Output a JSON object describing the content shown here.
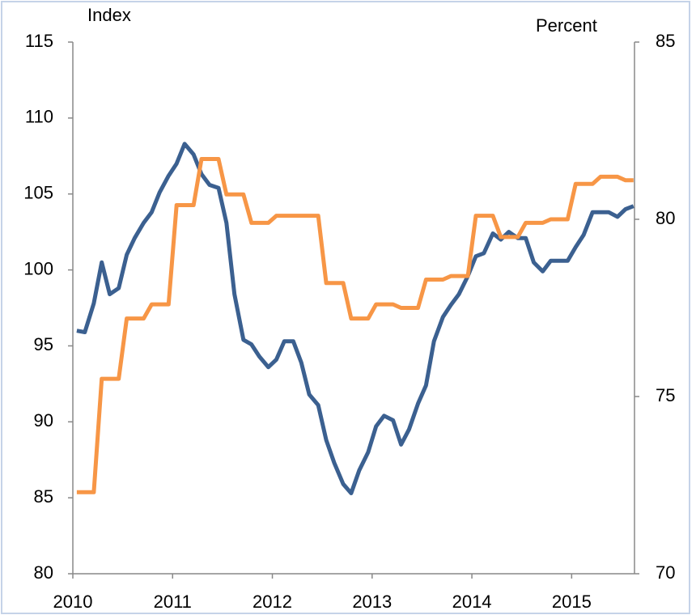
{
  "chart_data": {
    "type": "line",
    "y_label": "Index",
    "y2_label": "Percent",
    "x": [
      2010.04,
      2010.12,
      2010.21,
      2010.29,
      2010.37,
      2010.46,
      2010.54,
      2010.62,
      2010.71,
      2010.79,
      2010.87,
      2010.96,
      2011.04,
      2011.12,
      2011.21,
      2011.29,
      2011.37,
      2011.46,
      2011.54,
      2011.62,
      2011.71,
      2011.79,
      2011.87,
      2011.96,
      2012.04,
      2012.12,
      2012.21,
      2012.29,
      2012.37,
      2012.46,
      2012.54,
      2012.62,
      2012.71,
      2012.79,
      2012.87,
      2012.96,
      2013.04,
      2013.12,
      2013.21,
      2013.29,
      2013.37,
      2013.46,
      2013.54,
      2013.62,
      2013.71,
      2013.79,
      2013.87,
      2013.96,
      2014.04,
      2014.12,
      2014.21,
      2014.29,
      2014.37,
      2014.46,
      2014.54,
      2014.62,
      2014.71,
      2014.79,
      2014.87,
      2014.96,
      2015.04,
      2015.12,
      2015.21,
      2015.29,
      2015.37,
      2015.46,
      2015.54,
      2015.62
    ],
    "series": [
      {
        "color": "#3b6090",
        "axis": "y",
        "values": [
          96.0,
          95.9,
          97.8,
          100.5,
          98.4,
          98.8,
          101.0,
          102.1,
          103.1,
          103.8,
          105.1,
          106.2,
          107.0,
          108.3,
          107.6,
          106.3,
          105.6,
          105.4,
          103.1,
          98.4,
          95.4,
          95.1,
          94.3,
          93.6,
          94.1,
          95.3,
          95.3,
          93.9,
          91.8,
          91.1,
          88.8,
          87.3,
          85.9,
          85.3,
          86.8,
          88.0,
          89.7,
          90.4,
          90.1,
          88.5,
          89.5,
          91.2,
          92.4,
          95.3,
          96.9,
          97.7,
          98.4,
          99.6,
          100.9,
          101.1,
          102.4,
          102.0,
          102.5,
          102.1,
          102.1,
          100.5,
          99.9,
          100.6,
          100.6,
          100.6,
          101.5,
          102.3,
          103.8,
          103.8,
          103.8,
          103.5,
          104.0,
          104.2
        ]
      },
      {
        "color": "#f79646",
        "axis": "y2",
        "values": [
          72.3,
          72.3,
          72.3,
          75.5,
          75.5,
          75.5,
          77.2,
          77.2,
          77.2,
          77.6,
          77.6,
          77.6,
          80.4,
          80.4,
          80.4,
          81.7,
          81.7,
          81.7,
          80.7,
          80.7,
          80.7,
          79.9,
          79.9,
          79.9,
          80.1,
          80.1,
          80.1,
          80.1,
          80.1,
          80.1,
          78.2,
          78.2,
          78.2,
          77.2,
          77.2,
          77.2,
          77.6,
          77.6,
          77.6,
          77.5,
          77.5,
          77.5,
          78.3,
          78.3,
          78.3,
          78.4,
          78.4,
          78.4,
          80.1,
          80.1,
          80.1,
          79.5,
          79.5,
          79.5,
          79.9,
          79.9,
          79.9,
          80.0,
          80.0,
          80.0,
          81.0,
          81.0,
          81.0,
          81.2,
          81.2,
          81.2,
          81.1,
          81.1
        ]
      }
    ],
    "xlim": [
      2010,
      2015.63
    ],
    "xticks": [
      2010,
      2011,
      2012,
      2013,
      2014,
      2015
    ],
    "ylim": [
      80,
      115
    ],
    "yticks": [
      80,
      85,
      90,
      95,
      100,
      105,
      110,
      115
    ],
    "y2lim": [
      70,
      85
    ],
    "y2ticks": [
      70,
      75,
      80,
      85
    ]
  }
}
